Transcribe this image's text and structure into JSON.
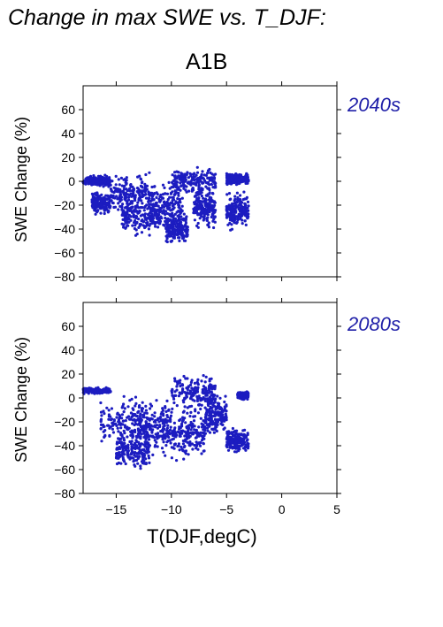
{
  "figure": {
    "title": "Change in max SWE vs. T_DJF:",
    "scenario": "A1B",
    "xlabel": "T(DJF,degC)"
  },
  "colors": {
    "points": "#1c1cc0",
    "period_label": "#1f1fa8"
  },
  "chart_data": [
    {
      "type": "scatter",
      "period_label": "2040s",
      "ylabel": "SWE Change (%)",
      "xlim": [
        -18,
        5
      ],
      "ylim": [
        -80,
        80
      ],
      "xticks": [
        -15,
        -10,
        -5,
        0,
        5
      ],
      "yticks": [
        -80,
        -60,
        -40,
        -20,
        0,
        20,
        40,
        60
      ],
      "clusters": [
        {
          "x": [
            -18,
            -15.5
          ],
          "y_mean": 0,
          "y_spread": 6
        },
        {
          "x": [
            -17.2,
            -15.5
          ],
          "y_mean": -18,
          "y_spread": 12
        },
        {
          "x": [
            -15.5,
            -12
          ],
          "y_mean": -10,
          "y_spread": 20
        },
        {
          "x": [
            -14.5,
            -11
          ],
          "y_mean": -30,
          "y_spread": 18
        },
        {
          "x": [
            -12,
            -9
          ],
          "y_mean": -20,
          "y_spread": 25
        },
        {
          "x": [
            -10.5,
            -8.5
          ],
          "y_mean": -40,
          "y_spread": 15
        },
        {
          "x": [
            -10,
            -6
          ],
          "y_mean": 0,
          "y_spread": 14
        },
        {
          "x": [
            -8,
            -6
          ],
          "y_mean": -22,
          "y_spread": 20
        },
        {
          "x": [
            -5,
            -3
          ],
          "y_mean": -25,
          "y_spread": 18
        },
        {
          "x": [
            -5,
            -3
          ],
          "y_mean": 2,
          "y_spread": 6
        }
      ]
    },
    {
      "type": "scatter",
      "period_label": "2080s",
      "ylabel": "SWE Change (%)",
      "xlim": [
        -18,
        5
      ],
      "ylim": [
        -80,
        80
      ],
      "xticks": [
        -15,
        -10,
        -5,
        0,
        5
      ],
      "yticks": [
        -80,
        -60,
        -40,
        -20,
        0,
        20,
        40,
        60
      ],
      "clusters": [
        {
          "x": [
            -18,
            -15.5
          ],
          "y_mean": 6,
          "y_spread": 3
        },
        {
          "x": [
            -16.5,
            -12
          ],
          "y_mean": -20,
          "y_spread": 25
        },
        {
          "x": [
            -15,
            -12
          ],
          "y_mean": -45,
          "y_spread": 18
        },
        {
          "x": [
            -13,
            -10
          ],
          "y_mean": -25,
          "y_spread": 28
        },
        {
          "x": [
            -10,
            -6
          ],
          "y_mean": 5,
          "y_spread": 18
        },
        {
          "x": [
            -10,
            -7
          ],
          "y_mean": -30,
          "y_spread": 25
        },
        {
          "x": [
            -7,
            -5
          ],
          "y_mean": -15,
          "y_spread": 20
        },
        {
          "x": [
            -5,
            -3
          ],
          "y_mean": -35,
          "y_spread": 12
        },
        {
          "x": [
            -4,
            -3
          ],
          "y_mean": 2,
          "y_spread": 4
        }
      ]
    }
  ]
}
